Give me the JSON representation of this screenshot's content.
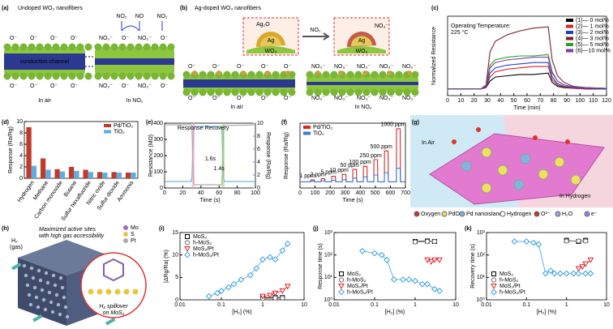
{
  "diagrams": {
    "a": {
      "label": "(a)",
      "title": "Undoped WO₃ nanofibers",
      "channel": "conduction channel",
      "gases": [
        "NO₂",
        "NO",
        "NO₂"
      ],
      "ion_o": "O⁻",
      "ion_no2": "NO₂⁻",
      "states": [
        "In air",
        "In NO₂"
      ]
    },
    "b": {
      "label": "(b)",
      "title": "Ag-doped WO₃ nanofibers",
      "ag2o": "Ag₂O",
      "ag": "Ag",
      "wo3": "WO₃",
      "gas": "NO₂",
      "ion_no3": "NO₃⁻",
      "ion_o": "O⁻",
      "states": [
        "In air",
        "In NO₂"
      ]
    },
    "g": {
      "label": "(g)",
      "in_air": "In Air",
      "in_h2": "In Hydrogen",
      "legend": [
        "Oxygen",
        "PdO",
        "Pd nanoisland",
        "Hydrogen",
        "O²⁻",
        "H₂O",
        "e⁻"
      ]
    },
    "h": {
      "label": "(h)",
      "gas": [
        "H₂",
        "(gas)"
      ],
      "callout": [
        "Maximized active sites",
        "with high gas accessibility"
      ],
      "legend": [
        "Mo",
        "S",
        "Pt"
      ],
      "spillover": [
        "H₂ spillover",
        "on MoS₂"
      ]
    }
  },
  "chart_data": [
    {
      "type": "line",
      "label": "(c)",
      "xlabel": "Time (min)",
      "ylabel": "Normalized Resistance",
      "annotation": [
        "Operating Temperature:",
        "225 °C"
      ],
      "x": [
        0,
        25,
        29,
        32,
        36,
        45,
        55,
        65,
        76,
        79,
        83,
        88,
        95,
        105,
        120
      ],
      "xlim": [
        0,
        120
      ],
      "xticks": [
        0,
        10,
        20,
        30,
        40,
        50,
        60,
        70,
        80,
        90,
        100,
        110,
        120
      ],
      "ylim": [
        0.5,
        6.5
      ],
      "legend": "upper right",
      "series": [
        {
          "name": "(1)— 0 mol%",
          "color": "#000000",
          "values": [
            1,
            1,
            1.1,
            1.6,
            1.9,
            2.0,
            2.1,
            2.1,
            2.2,
            1.5,
            1.2,
            1.1,
            1.05,
            1.0,
            1.0
          ]
        },
        {
          "name": "(2)— 1 mol%",
          "color": "#d62728",
          "values": [
            1,
            1,
            1.1,
            1.9,
            2.3,
            2.5,
            2.6,
            2.7,
            2.7,
            1.7,
            1.3,
            1.15,
            1.05,
            1.0,
            1.0
          ]
        },
        {
          "name": "(3)— 2 mol%",
          "color": "#1f3fbf",
          "values": [
            1,
            1,
            1.15,
            2.2,
            2.6,
            2.8,
            2.9,
            3.0,
            3.0,
            1.9,
            1.4,
            1.2,
            1.1,
            1.05,
            1.0
          ]
        },
        {
          "name": "(4)— 3 mol%",
          "color": "#7a1f2b",
          "values": [
            1,
            1,
            1.3,
            3.8,
            4.6,
            5.1,
            5.4,
            5.6,
            5.7,
            3.2,
            2.0,
            1.5,
            1.2,
            1.1,
            1.05
          ]
        },
        {
          "name": "(5)— 5 mol%",
          "color": "#2ca02c",
          "values": [
            1,
            1,
            1.2,
            2.8,
            3.2,
            3.4,
            3.5,
            3.5,
            3.6,
            2.3,
            1.6,
            1.3,
            1.15,
            1.1,
            1.05
          ]
        },
        {
          "name": "(6)—10 mol%",
          "color": "#7f3f9f",
          "values": [
            1,
            1,
            1.2,
            2.6,
            3.0,
            3.2,
            3.3,
            3.4,
            3.4,
            2.2,
            1.6,
            1.3,
            1.15,
            1.1,
            1.05
          ]
        }
      ]
    },
    {
      "type": "bar",
      "label": "(d)",
      "ylabel": "Response (Ra/Rg)",
      "categories": [
        "Hydrogen",
        "Methane",
        "Carbon monoxide",
        "Butane",
        "Sulfur hexafluoride",
        "Nitric oxide",
        "Sulfur dioxide",
        "Ammonia"
      ],
      "ylim": [
        0,
        10
      ],
      "yticks": [
        0,
        2,
        4,
        6,
        8,
        10
      ],
      "legend": "upper right",
      "series": [
        {
          "name": "Pd/TiO₂",
          "color": "#c0392b",
          "values": [
            9,
            3.5,
            1.6,
            2,
            1.5,
            1.1,
            1.1,
            1
          ]
        },
        {
          "name": "TiO₂",
          "color": "#5dade2",
          "values": [
            2.2,
            1.5,
            1.2,
            1.3,
            1.1,
            1,
            1,
            1
          ]
        }
      ]
    },
    {
      "type": "line",
      "label": "(e)",
      "xlabel": "Time (s)",
      "ylabel": "Resistance (MΩ)",
      "y2label": "Response (Ra/Rg)",
      "annotations": [
        "Response",
        "Recovery",
        "1.6s",
        "1.4s"
      ],
      "x": [
        0,
        29,
        30,
        32,
        33,
        62,
        63,
        65,
        66,
        100
      ],
      "xlim": [
        0,
        100
      ],
      "xticks": [
        0,
        20,
        40,
        60,
        80,
        100
      ],
      "ylim": [
        0,
        400
      ],
      "yticks": [
        0,
        100,
        200,
        300,
        400
      ],
      "y2lim": [
        0,
        10
      ],
      "y2ticks": [
        0,
        2,
        4,
        6,
        8,
        10
      ],
      "series": [
        {
          "color": "#9a9a9a",
          "values": [
            390,
            390,
            380,
            30,
            20,
            20,
            25,
            370,
            385,
            390
          ]
        },
        {
          "color": "#4ea6dc",
          "axis": "y2",
          "values": [
            1,
            1,
            1.5,
            9,
            9.5,
            9.5,
            9,
            1.5,
            1,
            1
          ]
        }
      ]
    },
    {
      "type": "line",
      "label": "(f)",
      "xlabel": "Time (s)",
      "ylabel": "Response (Ra/Rg)",
      "annotations": [
        "1 ppm",
        "2 ppm",
        "5 ppm",
        "10 ppm",
        "50 ppm",
        "100 ppm",
        "250 ppm",
        "500 ppm",
        "1000 ppm"
      ],
      "x": [
        0,
        70,
        71,
        95,
        97,
        140,
        141,
        165,
        167,
        210,
        211,
        235,
        237,
        280,
        281,
        305,
        307,
        350,
        351,
        375,
        377,
        420,
        421,
        445,
        447,
        490,
        491,
        515,
        517,
        560,
        561,
        585,
        587,
        640,
        641,
        665,
        667,
        700
      ],
      "xlim": [
        0,
        700
      ],
      "xticks": [
        0,
        100,
        200,
        300,
        400,
        500,
        600,
        700
      ],
      "ylim": [
        0,
        10.5
      ],
      "legend": "upper left",
      "series": [
        {
          "name": "Pd/TiO₂",
          "color": "#d62728",
          "values": [
            1,
            1,
            1.3,
            1.3,
            1,
            1,
            1.5,
            1.5,
            1,
            1,
            1.9,
            1.9,
            1,
            1,
            2.2,
            2.2,
            1,
            1,
            3.0,
            3.0,
            1,
            1,
            3.5,
            3.5,
            1,
            1,
            4.6,
            4.6,
            1,
            1,
            6.0,
            6.0,
            1,
            1,
            9.6,
            9.6,
            1,
            1
          ]
        },
        {
          "name": "TiO₂",
          "color": "#3a7fd5",
          "values": [
            1,
            1,
            1.1,
            1.1,
            1,
            1,
            1.15,
            1.15,
            1,
            1,
            1.25,
            1.25,
            1,
            1,
            1.35,
            1.35,
            1,
            1,
            1.6,
            1.6,
            1,
            1,
            1.8,
            1.8,
            1,
            1,
            2.1,
            2.1,
            1,
            1,
            2.5,
            2.5,
            1,
            1,
            3.2,
            3.2,
            1,
            1
          ]
        }
      ]
    },
    {
      "type": "scatter",
      "label": "(i)",
      "xlabel": "[H₂] (%)",
      "ylabel": "|ΔRg/Ra| (%)",
      "xscale": "log",
      "xlim": [
        0.01,
        10
      ],
      "xticks": [
        0.01,
        0.1,
        1,
        10
      ],
      "ylim": [
        0,
        15
      ],
      "yticks": [
        0,
        5,
        10,
        15
      ],
      "legend": "upper left",
      "series": [
        {
          "name": "MoS₂",
          "color": "#000000",
          "marker": "square",
          "x": [
            1,
            2,
            3
          ],
          "values": [
            0.5,
            0.5,
            0.5
          ]
        },
        {
          "name": "h-MoS₂",
          "color": "#707070",
          "marker": "circle",
          "x": [
            1,
            2,
            3
          ],
          "values": [
            0.3,
            0.4,
            0.4
          ]
        },
        {
          "name": "MoS₂/Pt",
          "color": "#e0202a",
          "marker": "triangle",
          "x": [
            1,
            1.5,
            2,
            3,
            4
          ],
          "values": [
            0.8,
            1,
            1.5,
            2,
            3
          ]
        },
        {
          "name": "h-MoS₂/Pt",
          "color": "#3aa0e0",
          "marker": "diamond",
          "x": [
            0.05,
            0.08,
            0.1,
            0.15,
            0.2,
            0.3,
            0.5,
            0.7,
            1,
            1.5,
            2,
            3,
            4
          ],
          "values": [
            0.8,
            1.5,
            2,
            2.8,
            3.5,
            4.5,
            5.5,
            7,
            9,
            9.5,
            9,
            11,
            12.5
          ]
        }
      ]
    },
    {
      "type": "scatter",
      "label": "(j)",
      "xlabel": "[H₂] (%)",
      "ylabel": "Response time (s)",
      "xscale": "log",
      "yscale": "log",
      "xlim": [
        0.01,
        10
      ],
      "xticks": [
        0.01,
        0.1,
        1,
        10
      ],
      "ylim": [
        1,
        1000
      ],
      "yticks": [
        {
          "value": 1,
          "label": "10⁰"
        },
        {
          "value": 10,
          "label": "10¹"
        },
        {
          "value": 100,
          "label": "10²"
        },
        {
          "value": 1000,
          "label": "10³"
        }
      ],
      "legend": "lower left",
      "series": [
        {
          "name": "MoS₂",
          "color": "#000000",
          "marker": "square",
          "x": [
            1,
            2,
            3
          ],
          "values": [
            400,
            420,
            400
          ]
        },
        {
          "name": "h-MoS₂",
          "color": "#707070",
          "marker": "circle",
          "x": [
            1,
            2,
            3
          ],
          "values": [
            380,
            400,
            400
          ]
        },
        {
          "name": "MoS₂/Pt",
          "color": "#e0202a",
          "marker": "triangle",
          "x": [
            2,
            2.5,
            3,
            4
          ],
          "values": [
            60,
            50,
            60,
            60
          ]
        },
        {
          "name": "h-MoS₂/Pt",
          "color": "#3aa0e0",
          "marker": "diamond",
          "x": [
            0.05,
            0.1,
            0.15,
            0.2,
            0.3,
            0.5,
            0.7,
            1,
            1.5,
            2,
            3,
            4
          ],
          "values": [
            150,
            120,
            100,
            60,
            8,
            8,
            8,
            7,
            5,
            5,
            3,
            2.5
          ]
        }
      ]
    },
    {
      "type": "scatter",
      "label": "(k)",
      "xlabel": "[H₂] (%)",
      "ylabel": "Recovery time (s)",
      "xscale": "log",
      "yscale": "log",
      "xlim": [
        0.01,
        10
      ],
      "xticks": [
        0.01,
        0.1,
        1,
        10
      ],
      "ylim": [
        1,
        1000
      ],
      "yticks": [
        {
          "value": 1,
          "label": "10⁰"
        },
        {
          "value": 10,
          "label": "10¹"
        },
        {
          "value": 100,
          "label": "10²"
        },
        {
          "value": 1000,
          "label": "10³"
        }
      ],
      "legend": "lower left",
      "series": [
        {
          "name": "MoS₂",
          "color": "#000000",
          "marker": "square",
          "x": [
            1,
            2,
            3
          ],
          "values": [
            450,
            400,
            450
          ]
        },
        {
          "name": "h-MoS₂",
          "color": "#707070",
          "marker": "circle",
          "x": [
            1,
            2,
            3
          ],
          "values": [
            420,
            420,
            420
          ]
        },
        {
          "name": "MoS₂/Pt",
          "color": "#e0202a",
          "marker": "triangle",
          "x": [
            2,
            2.5,
            3,
            4
          ],
          "values": [
            25,
            30,
            40,
            60
          ]
        },
        {
          "name": "h-MoS₂/Pt",
          "color": "#3aa0e0",
          "marker": "diamond",
          "x": [
            0.05,
            0.1,
            0.15,
            0.2,
            0.3,
            0.4,
            0.5,
            0.7,
            1,
            1.5,
            2,
            3,
            4
          ],
          "values": [
            400,
            400,
            350,
            300,
            15,
            20,
            15,
            15,
            15,
            15,
            15,
            15,
            15
          ]
        }
      ]
    }
  ]
}
